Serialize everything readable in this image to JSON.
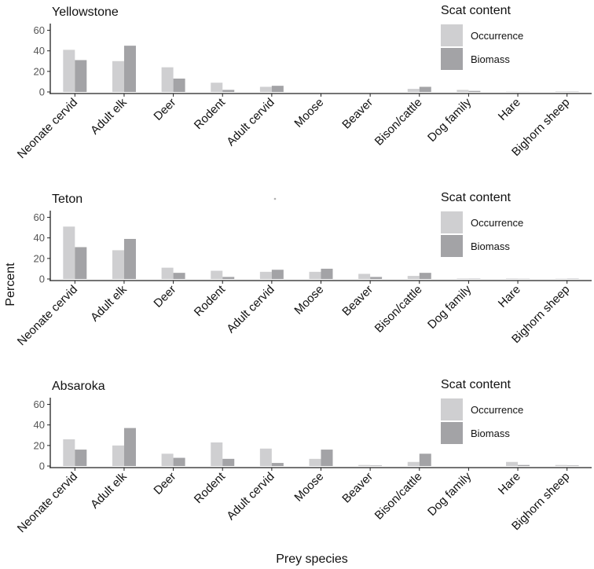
{
  "chart_data": {
    "type": "bar",
    "ylabel": "Percent",
    "xlabel": "Prey species",
    "legend": {
      "title": "Scat content",
      "entries": [
        {
          "name": "Occurrence",
          "color": "#cfcfd1"
        },
        {
          "name": "Biomass",
          "color": "#a3a3a6"
        }
      ],
      "placement": "top-right"
    },
    "categories": [
      "Neonate cervid",
      "Adult elk",
      "Deer",
      "Rodent",
      "Adult cervid",
      "Moose",
      "Beaver",
      "Bison/cattle",
      "Dog family",
      "Hare",
      "Bighorn sheep"
    ],
    "ylim": [
      0,
      65
    ],
    "yticks": [
      0,
      20,
      40,
      60
    ],
    "panels": [
      {
        "title": "Yellowstone",
        "series": [
          {
            "name": "Occurrence",
            "values": [
              41,
              30,
              24,
              9,
              5,
              0,
              0,
              3,
              2,
              0.3,
              0.5
            ]
          },
          {
            "name": "Biomass",
            "values": [
              31,
              45,
              13,
              2,
              6,
              0,
              0,
              5,
              1,
              0.1,
              0.3
            ]
          }
        ]
      },
      {
        "title": "Teton",
        "series": [
          {
            "name": "Occurrence",
            "values": [
              51,
              28,
              11,
              8,
              7,
              7,
              5,
              3,
              0.5,
              0.5,
              0.3
            ]
          },
          {
            "name": "Biomass",
            "values": [
              31,
              39,
              6,
              2,
              9,
              10,
              2,
              6,
              0.3,
              0.2,
              0.3
            ]
          }
        ]
      },
      {
        "title": "Absaroka",
        "series": [
          {
            "name": "Occurrence",
            "values": [
              26,
              20,
              12,
              23,
              17,
              7,
              1,
              4,
              0,
              4,
              1
            ]
          },
          {
            "name": "Biomass",
            "values": [
              16,
              37,
              8,
              7,
              3,
              16,
              0.5,
              12,
              0,
              1,
              0.5
            ]
          }
        ]
      }
    ]
  }
}
